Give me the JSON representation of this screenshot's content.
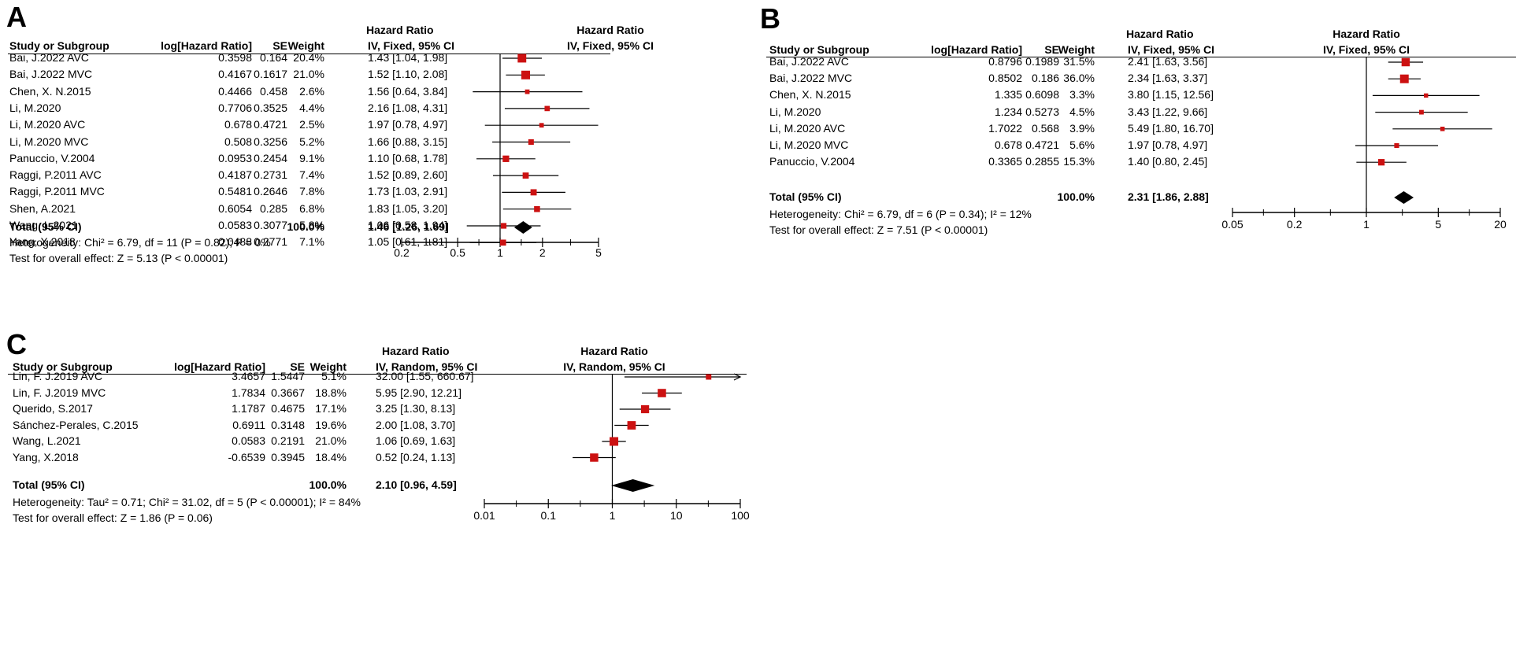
{
  "chart_data": [
    {
      "type": "forest",
      "panel_label": "A",
      "model": "IV, Fixed, 95% CI",
      "header_hr": "Hazard Ratio",
      "columns": [
        "Study or Subgroup",
        "log[Hazard Ratio]",
        "SE",
        "Weight",
        "IV, Fixed, 95% CI"
      ],
      "plot_header": "Hazard Ratio",
      "plot_subheader": "IV, Fixed, 95% CI",
      "xscale": "log",
      "xlim": [
        0.2,
        5
      ],
      "xticks": [
        0.2,
        0.5,
        1,
        2,
        5
      ],
      "xtick_labels": [
        "0.2",
        "0.5",
        "1",
        "2",
        "5"
      ],
      "rows": [
        {
          "study": "Bai, J.2022 AVC",
          "loghr": "0.3598",
          "se": "0.164",
          "weight": "20.4%",
          "ci_text": "1.43 [1.04, 1.98]",
          "hr": 1.43,
          "lo": 1.04,
          "hi": 1.98,
          "w": 20.4
        },
        {
          "study": "Bai, J.2022 MVC",
          "loghr": "0.4167",
          "se": "0.1617",
          "weight": "21.0%",
          "ci_text": "1.52 [1.10, 2.08]",
          "hr": 1.52,
          "lo": 1.1,
          "hi": 2.08,
          "w": 21.0
        },
        {
          "study": "Chen, X. N.2015",
          "loghr": "0.4466",
          "se": "0.458",
          "weight": "2.6%",
          "ci_text": "1.56 [0.64, 3.84]",
          "hr": 1.56,
          "lo": 0.64,
          "hi": 3.84,
          "w": 2.6
        },
        {
          "study": "Li, M.2020",
          "loghr": "0.7706",
          "se": "0.3525",
          "weight": "4.4%",
          "ci_text": "2.16 [1.08, 4.31]",
          "hr": 2.16,
          "lo": 1.08,
          "hi": 4.31,
          "w": 4.4
        },
        {
          "study": "Li, M.2020 AVC",
          "loghr": "0.678",
          "se": "0.4721",
          "weight": "2.5%",
          "ci_text": "1.97 [0.78, 4.97]",
          "hr": 1.97,
          "lo": 0.78,
          "hi": 4.97,
          "w": 2.5
        },
        {
          "study": "Li, M.2020 MVC",
          "loghr": "0.508",
          "se": "0.3256",
          "weight": "5.2%",
          "ci_text": "1.66 [0.88, 3.15]",
          "hr": 1.66,
          "lo": 0.88,
          "hi": 3.15,
          "w": 5.2
        },
        {
          "study": "Panuccio, V.2004",
          "loghr": "0.0953",
          "se": "0.2454",
          "weight": "9.1%",
          "ci_text": "1.10 [0.68, 1.78]",
          "hr": 1.1,
          "lo": 0.68,
          "hi": 1.78,
          "w": 9.1
        },
        {
          "study": "Raggi, P.2011 AVC",
          "loghr": "0.4187",
          "se": "0.2731",
          "weight": "7.4%",
          "ci_text": "1.52 [0.89, 2.60]",
          "hr": 1.52,
          "lo": 0.89,
          "hi": 2.6,
          "w": 7.4
        },
        {
          "study": "Raggi, P.2011 MVC",
          "loghr": "0.5481",
          "se": "0.2646",
          "weight": "7.8%",
          "ci_text": "1.73 [1.03, 2.91]",
          "hr": 1.73,
          "lo": 1.03,
          "hi": 2.91,
          "w": 7.8
        },
        {
          "study": "Shen, A.2021",
          "loghr": "0.6054",
          "se": "0.285",
          "weight": "6.8%",
          "ci_text": "1.83 [1.05, 3.20]",
          "hr": 1.83,
          "lo": 1.05,
          "hi": 3.2,
          "w": 6.8
        },
        {
          "study": "Wang, L.2021",
          "loghr": "0.0583",
          "se": "0.3077",
          "weight": "5.8%",
          "ci_text": "1.06 [0.58, 1.94]",
          "hr": 1.06,
          "lo": 0.58,
          "hi": 1.94,
          "w": 5.8
        },
        {
          "study": "Yang, X.2018",
          "loghr": "0.0488",
          "se": "0.2771",
          "weight": "7.1%",
          "ci_text": "1.05 [0.61, 1.81]",
          "hr": 1.05,
          "lo": 0.61,
          "hi": 1.81,
          "w": 7.1
        }
      ],
      "total": {
        "label": "Total (95% CI)",
        "weight": "100.0%",
        "ci_text": "1.46 [1.26, 1.69]",
        "hr": 1.46,
        "lo": 1.26,
        "hi": 1.69
      },
      "heterogeneity": "Heterogeneity: Chi² = 6.79, df = 11 (P = 0.82); I² = 0%",
      "overall_effect": "Test for overall effect: Z = 5.13 (P < 0.00001)"
    },
    {
      "type": "forest",
      "panel_label": "B",
      "model": "IV, Fixed, 95% CI",
      "header_hr": "Hazard Ratio",
      "columns": [
        "Study or Subgroup",
        "log[Hazard Ratio]",
        "SE",
        "Weight",
        "IV, Fixed, 95% CI"
      ],
      "plot_header": "Hazard Ratio",
      "plot_subheader": "IV, Fixed, 95% CI",
      "xscale": "log",
      "xlim": [
        0.05,
        20
      ],
      "xticks": [
        0.05,
        0.2,
        1,
        5,
        20
      ],
      "xtick_labels": [
        "0.05",
        "0.2",
        "1",
        "5",
        "20"
      ],
      "rows": [
        {
          "study": "Bai, J.2022 AVC",
          "loghr": "0.8796",
          "se": "0.1989",
          "weight": "31.5%",
          "ci_text": "2.41 [1.63, 3.56]",
          "hr": 2.41,
          "lo": 1.63,
          "hi": 3.56,
          "w": 31.5
        },
        {
          "study": "Bai, J.2022 MVC",
          "loghr": "0.8502",
          "se": "0.186",
          "weight": "36.0%",
          "ci_text": "2.34 [1.63, 3.37]",
          "hr": 2.34,
          "lo": 1.63,
          "hi": 3.37,
          "w": 36.0
        },
        {
          "study": "Chen, X. N.2015",
          "loghr": "1.335",
          "se": "0.6098",
          "weight": "3.3%",
          "ci_text": "3.80 [1.15, 12.56]",
          "hr": 3.8,
          "lo": 1.15,
          "hi": 12.56,
          "w": 3.3
        },
        {
          "study": "Li, M.2020",
          "loghr": "1.234",
          "se": "0.5273",
          "weight": "4.5%",
          "ci_text": "3.43 [1.22, 9.66]",
          "hr": 3.43,
          "lo": 1.22,
          "hi": 9.66,
          "w": 4.5
        },
        {
          "study": "Li, M.2020 AVC",
          "loghr": "1.7022",
          "se": "0.568",
          "weight": "3.9%",
          "ci_text": "5.49 [1.80, 16.70]",
          "hr": 5.49,
          "lo": 1.8,
          "hi": 16.7,
          "w": 3.9
        },
        {
          "study": "Li, M.2020 MVC",
          "loghr": "0.678",
          "se": "0.4721",
          "weight": "5.6%",
          "ci_text": "1.97 [0.78, 4.97]",
          "hr": 1.97,
          "lo": 0.78,
          "hi": 4.97,
          "w": 5.6
        },
        {
          "study": "Panuccio, V.2004",
          "loghr": "0.3365",
          "se": "0.2855",
          "weight": "15.3%",
          "ci_text": "1.40 [0.80, 2.45]",
          "hr": 1.4,
          "lo": 0.8,
          "hi": 2.45,
          "w": 15.3
        }
      ],
      "total": {
        "label": "Total (95% CI)",
        "weight": "100.0%",
        "ci_text": "2.31 [1.86, 2.88]",
        "hr": 2.31,
        "lo": 1.86,
        "hi": 2.88
      },
      "heterogeneity": "Heterogeneity: Chi² = 6.79, df = 6 (P = 0.34); I² = 12%",
      "overall_effect": "Test for overall effect: Z = 7.51 (P < 0.00001)"
    },
    {
      "type": "forest",
      "panel_label": "C",
      "model": "IV, Random, 95% CI",
      "header_hr": "Hazard Ratio",
      "columns": [
        "Study or Subgroup",
        "log[Hazard Ratio]",
        "SE",
        "Weight",
        "IV, Random, 95% CI"
      ],
      "plot_header": "Hazard Ratio",
      "plot_subheader": "IV, Random, 95% CI",
      "xscale": "log",
      "xlim": [
        0.01,
        100
      ],
      "xticks": [
        0.01,
        0.1,
        1,
        10,
        100
      ],
      "xtick_labels": [
        "0.01",
        "0.1",
        "1",
        "10",
        "100"
      ],
      "rows": [
        {
          "study": "Lin, F. J.2019 AVC",
          "loghr": "3.4657",
          "se": "1.5447",
          "weight": "5.1%",
          "ci_text": "32.00 [1.55, 660.67]",
          "hr": 32.0,
          "lo": 1.55,
          "hi": 660.67,
          "w": 5.1
        },
        {
          "study": "Lin, F. J.2019 MVC",
          "loghr": "1.7834",
          "se": "0.3667",
          "weight": "18.8%",
          "ci_text": "5.95 [2.90, 12.21]",
          "hr": 5.95,
          "lo": 2.9,
          "hi": 12.21,
          "w": 18.8
        },
        {
          "study": "Querido, S.2017",
          "loghr": "1.1787",
          "se": "0.4675",
          "weight": "17.1%",
          "ci_text": "3.25 [1.30, 8.13]",
          "hr": 3.25,
          "lo": 1.3,
          "hi": 8.13,
          "w": 17.1
        },
        {
          "study": "Sánchez-Perales, C.2015",
          "loghr": "0.6911",
          "se": "0.3148",
          "weight": "19.6%",
          "ci_text": "2.00 [1.08, 3.70]",
          "hr": 2.0,
          "lo": 1.08,
          "hi": 3.7,
          "w": 19.6
        },
        {
          "study": "Wang, L.2021",
          "loghr": "0.0583",
          "se": "0.2191",
          "weight": "21.0%",
          "ci_text": "1.06 [0.69, 1.63]",
          "hr": 1.06,
          "lo": 0.69,
          "hi": 1.63,
          "w": 21.0
        },
        {
          "study": "Yang, X.2018",
          "loghr": "-0.6539",
          "se": "0.3945",
          "weight": "18.4%",
          "ci_text": "0.52 [0.24, 1.13]",
          "hr": 0.52,
          "lo": 0.24,
          "hi": 1.13,
          "w": 18.4
        }
      ],
      "total": {
        "label": "Total (95% CI)",
        "weight": "100.0%",
        "ci_text": "2.10 [0.96, 4.59]",
        "hr": 2.1,
        "lo": 0.96,
        "hi": 4.59
      },
      "heterogeneity": "Heterogeneity: Tau² = 0.71; Chi² = 31.02, df = 5 (P < 0.00001); I² = 84%",
      "overall_effect": "Test for overall effect: Z = 1.86 (P = 0.06)"
    }
  ],
  "colors": {
    "marker": "#cc1111",
    "diamond": "#000000",
    "line": "#000000"
  }
}
